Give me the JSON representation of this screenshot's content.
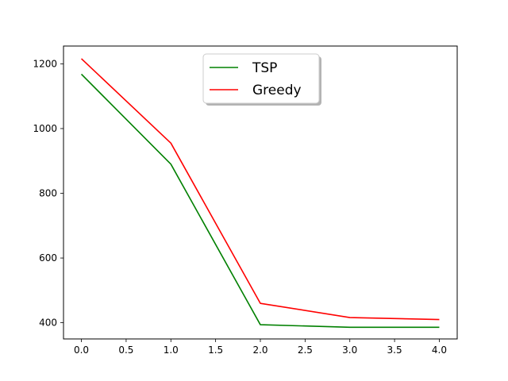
{
  "chart_data": {
    "type": "line",
    "title": "",
    "xlabel": "",
    "ylabel": "",
    "x": [
      0,
      1,
      2,
      3,
      4
    ],
    "xlim": [
      -0.2,
      4.2
    ],
    "ylim": [
      350,
      1255
    ],
    "xticks": [
      0.0,
      0.5,
      1.0,
      1.5,
      2.0,
      2.5,
      3.0,
      3.5,
      4.0
    ],
    "xtick_labels": [
      "0.0",
      "0.5",
      "1.0",
      "1.5",
      "2.0",
      "2.5",
      "3.0",
      "3.5",
      "4.0"
    ],
    "yticks": [
      400,
      600,
      800,
      1000,
      1200
    ],
    "ytick_labels": [
      "400",
      "600",
      "800",
      "1000",
      "1200"
    ],
    "grid": false,
    "legend_position": "top-center",
    "series": [
      {
        "name": "TSP",
        "color": "#008000",
        "values": [
          1168,
          890,
          394,
          386,
          386
        ]
      },
      {
        "name": "Greedy",
        "color": "#ff0000",
        "values": [
          1216,
          955,
          460,
          416,
          410
        ]
      }
    ]
  }
}
